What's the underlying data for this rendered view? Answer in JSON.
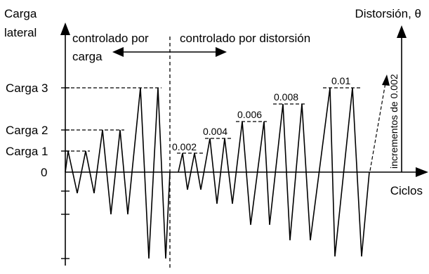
{
  "diagram": {
    "y_axis_left_label_line1": "Carga",
    "y_axis_left_label_line2": "lateral",
    "y_axis_right_label": "Distorsión, θ",
    "x_axis_label": "Ciclos",
    "zero_label": "0",
    "load_levels": [
      "Carga 1",
      "Carga 2",
      "Carga 3"
    ],
    "drift_levels": [
      "0.002",
      "0.004",
      "0.006",
      "0.008",
      "0.01"
    ],
    "left_region_label_line1": "controlado por",
    "left_region_label_line2": "carga",
    "right_region_label": "controlado por distorsión",
    "increment_label": "incrementos de 0.002",
    "colors": {
      "line": "#000000",
      "background": "#ffffff"
    }
  }
}
